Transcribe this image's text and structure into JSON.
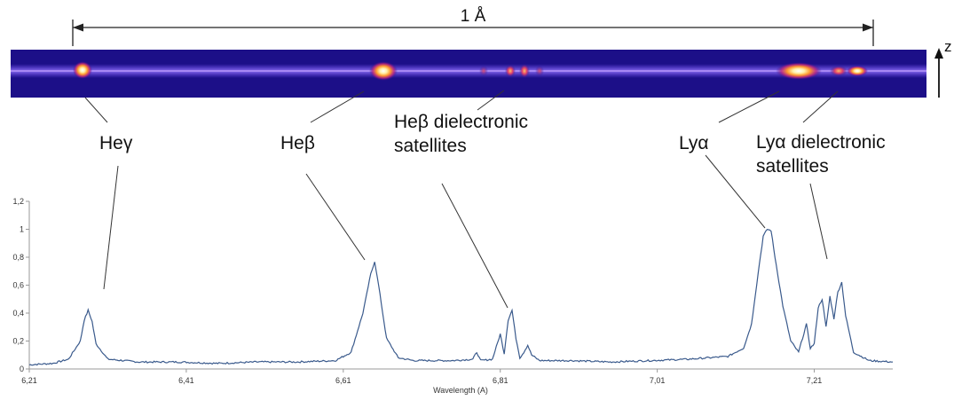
{
  "scale_bar": {
    "label": "1 Å"
  },
  "detector_axis": {
    "label": "z"
  },
  "annotations": {
    "hey": "Heγ",
    "heb": "Heβ",
    "heb_sat_line1": "Heβ dielectronic",
    "heb_sat_line2": "satellites",
    "lya": "Lyα",
    "lya_sat_line1": "Lyα dielectronic",
    "lya_sat_line2": "satellites"
  },
  "chart_data": {
    "type": "line",
    "title": "",
    "xlabel": "Wavelength (A)",
    "ylabel": "",
    "xlim": [
      6.21,
      7.31
    ],
    "ylim": [
      0,
      1.2
    ],
    "x_ticks": [
      "6,21",
      "6,41",
      "6,61",
      "6,81",
      "7,01",
      "7,21"
    ],
    "y_ticks": [
      "0",
      "0,2",
      "0,4",
      "0,6",
      "0,8",
      "1",
      "1,2"
    ],
    "grid": false,
    "legend": "none",
    "line_color": "#3a5a8c",
    "series": [
      {
        "x": [
          6.21,
          6.24,
          6.26,
          6.275,
          6.28,
          6.285,
          6.29,
          6.295,
          6.31,
          6.35,
          6.4,
          6.45,
          6.5,
          6.55,
          6.6,
          6.62,
          6.635,
          6.645,
          6.65,
          6.655,
          6.665,
          6.68,
          6.7,
          6.75,
          6.775,
          6.78,
          6.785,
          6.8,
          6.805,
          6.81,
          6.815,
          6.82,
          6.825,
          6.83,
          6.835,
          6.84,
          6.845,
          6.85,
          6.86,
          6.9,
          6.95,
          7.0,
          7.05,
          7.1,
          7.12,
          7.13,
          7.14,
          7.145,
          7.15,
          7.155,
          7.16,
          7.17,
          7.18,
          7.19,
          7.195,
          7.2,
          7.205,
          7.21,
          7.215,
          7.22,
          7.225,
          7.23,
          7.235,
          7.24,
          7.245,
          7.25,
          7.26,
          7.28,
          7.31
        ],
        "values": [
          0.03,
          0.04,
          0.07,
          0.2,
          0.35,
          0.42,
          0.34,
          0.18,
          0.07,
          0.05,
          0.05,
          0.04,
          0.05,
          0.05,
          0.06,
          0.12,
          0.4,
          0.68,
          0.77,
          0.6,
          0.22,
          0.08,
          0.06,
          0.06,
          0.07,
          0.12,
          0.06,
          0.07,
          0.16,
          0.25,
          0.11,
          0.35,
          0.42,
          0.22,
          0.08,
          0.12,
          0.17,
          0.1,
          0.06,
          0.06,
          0.05,
          0.06,
          0.07,
          0.09,
          0.15,
          0.32,
          0.75,
          0.95,
          1.0,
          0.99,
          0.8,
          0.45,
          0.2,
          0.12,
          0.22,
          0.32,
          0.15,
          0.18,
          0.44,
          0.5,
          0.3,
          0.52,
          0.36,
          0.55,
          0.62,
          0.38,
          0.12,
          0.06,
          0.05
        ]
      }
    ]
  }
}
